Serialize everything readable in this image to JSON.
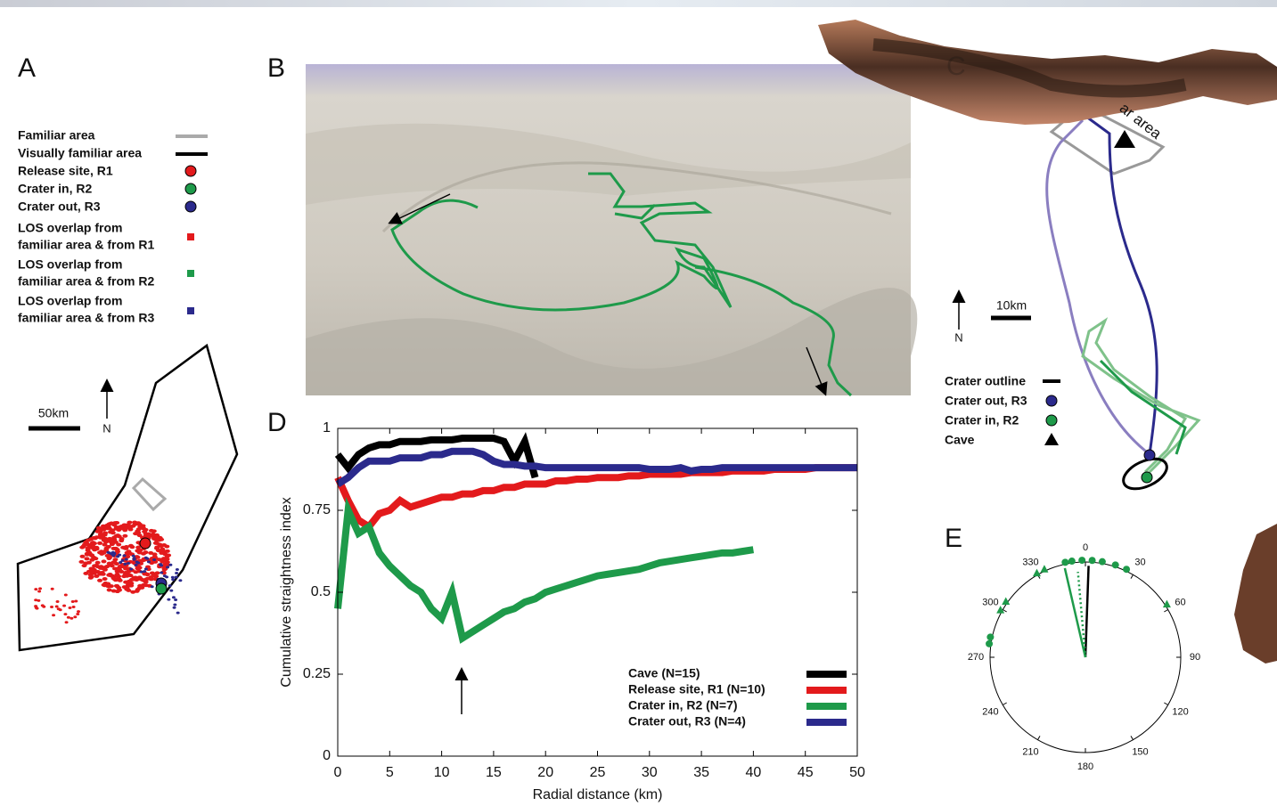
{
  "panel_labels": [
    "A",
    "B",
    "C",
    "D",
    "E"
  ],
  "panel_a": {
    "legend": [
      [
        "Familiar area"
      ],
      [
        "Visually familiar area"
      ],
      [
        "Release site, R1"
      ],
      [
        "Crater in, R2"
      ],
      [
        "Crater out, R3"
      ],
      [
        "LOS overlap from",
        "familiar area & from R1"
      ],
      [
        "LOS overlap from",
        "familiar area & from R2"
      ],
      [
        "LOS overlap from",
        "familiar area & from R3"
      ]
    ],
    "scale": "50km",
    "north": "N"
  },
  "panel_c": {
    "area_label": "ar area",
    "scale": "10km",
    "north": "N",
    "legend": [
      "Crater outline",
      "Crater out, R3",
      "Crater in, R2",
      "Cave"
    ]
  },
  "chart_data": [
    {
      "type": "line",
      "xlabel": "Radial distance (km)",
      "ylabel": "Cumulative straightness index",
      "xlim": [
        0,
        50
      ],
      "ylim": [
        0,
        1
      ],
      "xticks": [
        0,
        5,
        10,
        15,
        20,
        25,
        30,
        35,
        40,
        45,
        50
      ],
      "yticks": [
        0,
        0.25,
        0.5,
        0.75,
        1
      ],
      "legend": "lower right",
      "x": [
        0,
        1,
        2,
        3,
        4,
        5,
        6,
        7,
        8,
        9,
        10,
        11,
        12,
        13,
        14,
        15,
        16,
        17,
        18,
        19,
        20,
        21,
        22,
        23,
        24,
        25,
        26,
        27,
        28,
        29,
        30,
        31,
        32,
        33,
        34,
        35,
        36,
        37,
        38,
        39,
        40,
        41,
        42,
        43,
        44,
        45,
        46,
        47,
        48,
        49,
        50
      ],
      "series": [
        {
          "name": "Cave (N=15)",
          "color": "#000000",
          "values": [
            0.92,
            0.88,
            0.92,
            0.94,
            0.95,
            0.95,
            0.96,
            0.96,
            0.96,
            0.965,
            0.965,
            0.965,
            0.97,
            0.97,
            0.97,
            0.97,
            0.96,
            0.9,
            0.96,
            0.85,
            null,
            null,
            null,
            null,
            null,
            null,
            null,
            null,
            null,
            null,
            null,
            null,
            null,
            null,
            null,
            null,
            null,
            null,
            null,
            null,
            null,
            null,
            null,
            null,
            null,
            null,
            null,
            null,
            null,
            null,
            null
          ]
        },
        {
          "name": "Release site, R1 (N=10)",
          "color": "#e31a1c",
          "values": [
            0.85,
            0.78,
            0.72,
            0.7,
            0.74,
            0.75,
            0.78,
            0.76,
            0.77,
            0.78,
            0.79,
            0.79,
            0.8,
            0.8,
            0.81,
            0.81,
            0.82,
            0.82,
            0.83,
            0.83,
            0.83,
            0.84,
            0.84,
            0.845,
            0.845,
            0.85,
            0.85,
            0.85,
            0.855,
            0.855,
            0.86,
            0.86,
            0.86,
            0.86,
            0.865,
            0.865,
            0.865,
            0.865,
            0.87,
            0.87,
            0.87,
            0.87,
            0.875,
            0.875,
            0.875,
            0.875,
            0.88,
            0.88,
            0.88,
            0.88,
            0.88
          ]
        },
        {
          "name": "Crater in, R2 (N=7)",
          "color": "#1e9a4a",
          "values": [
            0.45,
            0.75,
            0.68,
            0.7,
            0.62,
            0.58,
            0.55,
            0.52,
            0.5,
            0.45,
            0.42,
            0.5,
            0.36,
            0.38,
            0.4,
            0.42,
            0.44,
            0.45,
            0.47,
            0.48,
            0.5,
            0.51,
            0.52,
            0.53,
            0.54,
            0.55,
            0.555,
            0.56,
            0.565,
            0.57,
            0.58,
            0.59,
            0.595,
            0.6,
            0.605,
            0.61,
            0.615,
            0.62,
            0.62,
            0.625,
            0.63,
            null,
            null,
            null,
            null,
            null,
            null,
            null,
            null,
            null,
            null
          ]
        },
        {
          "name": "Crater out, R3 (N=4)",
          "color": "#2b2a8c",
          "values": [
            0.83,
            0.85,
            0.88,
            0.9,
            0.9,
            0.9,
            0.91,
            0.91,
            0.91,
            0.92,
            0.92,
            0.93,
            0.93,
            0.93,
            0.92,
            0.9,
            0.89,
            0.89,
            0.885,
            0.885,
            0.88,
            0.88,
            0.88,
            0.88,
            0.88,
            0.88,
            0.88,
            0.88,
            0.88,
            0.88,
            0.875,
            0.875,
            0.875,
            0.88,
            0.87,
            0.875,
            0.875,
            0.88,
            0.88,
            0.88,
            0.88,
            0.88,
            0.88,
            0.88,
            0.88,
            0.88,
            0.88,
            0.88,
            0.88,
            0.88,
            0.88
          ]
        }
      ]
    },
    {
      "type": "polar",
      "angleticks": [
        0,
        30,
        60,
        90,
        120,
        150,
        180,
        210,
        240,
        270,
        300,
        330
      ],
      "points": [
        {
          "marker": "circle",
          "color": "#1e9a4a",
          "angles": [
            348,
            352,
            358,
            4,
            10,
            18,
            25,
            278,
            282
          ]
        },
        {
          "marker": "triangle",
          "color": "#1e9a4a",
          "angles": [
            330,
            335,
            305,
            299,
            57
          ]
        }
      ],
      "rlim": [
        0,
        1
      ],
      "vectors": [
        {
          "color": "#000000",
          "angle": 2,
          "length": 0.96
        },
        {
          "color": "#1e9a4a",
          "angle": 347,
          "length": 0.96
        },
        {
          "color": "#1e9a4a",
          "angle": 355,
          "length": 0.9,
          "dashed": true
        }
      ]
    }
  ]
}
